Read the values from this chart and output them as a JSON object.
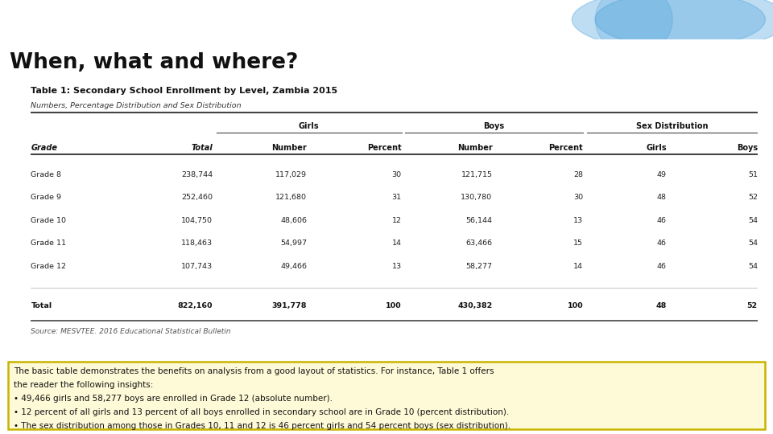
{
  "title": "When, what and where?",
  "header_bg": "#1278bc",
  "page_bg": "#ffffff",
  "table_title": "Table 1: Secondary School Enrollment by Level, Zambia 2015",
  "table_subtitle": "Numbers, Percentage Distribution and Sex Distribution",
  "col_headers": [
    "Grade",
    "Total",
    "Number",
    "Percent",
    "Number",
    "Percent",
    "Girls",
    "Boys"
  ],
  "rows": [
    [
      "Grade 8",
      "238,744",
      "117,029",
      "30",
      "121,715",
      "28",
      "49",
      "51"
    ],
    [
      "Grade 9",
      "252,460",
      "121,680",
      "31",
      "130,780",
      "30",
      "48",
      "52"
    ],
    [
      "Grade 10",
      "104,750",
      "48,606",
      "12",
      "56,144",
      "13",
      "46",
      "54"
    ],
    [
      "Grade 11",
      "118,463",
      "54,997",
      "14",
      "63,466",
      "15",
      "46",
      "54"
    ],
    [
      "Grade 12",
      "107,743",
      "49,466",
      "13",
      "58,277",
      "14",
      "46",
      "54"
    ]
  ],
  "total_row": [
    "Total",
    "822,160",
    "391,778",
    "100",
    "430,382",
    "100",
    "48",
    "52"
  ],
  "source": "Source: MESVTEE. 2016 Educational Statistical Bulletin",
  "box_bg": "#fef9d7",
  "box_border": "#c8b400",
  "box_text_line1": "The basic table demonstrates the benefits on analysis from a good layout of statistics. For instance, Table 1 offers",
  "box_text_line2": "the reader the following insights:",
  "box_bullet1": "• 49,466 girls and 58,277 boys are enrolled in Grade 12 (absolute number).",
  "box_bullet2": "• 12 percent of all girls and 13 percent of all boys enrolled in secondary school are in Grade 10 (percent distribution).",
  "box_bullet3": "• The sex distribution among those in Grades 10, 11 and 12 is 46 percent girls and 54 percent boys (sex distribution)."
}
